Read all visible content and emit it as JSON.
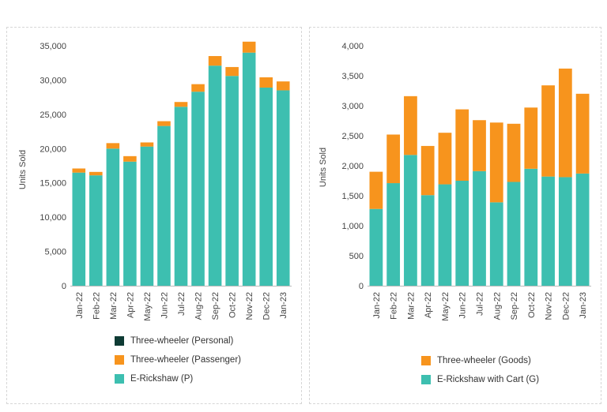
{
  "chart_data": [
    {
      "type": "bar",
      "stacked": true,
      "categories": [
        "Jan-22",
        "Feb-22",
        "Mar-22",
        "Apr-22",
        "May-22",
        "Jun-22",
        "Jul-22",
        "Aug-22",
        "Sep-22",
        "Oct-22",
        "Nov-22",
        "Dec-22",
        "Jan-23"
      ],
      "series": [
        {
          "name": "E-Rickshaw (P)",
          "color": "#3dbfb0",
          "values": [
            16500,
            16100,
            20000,
            18100,
            20300,
            23300,
            26100,
            28300,
            32100,
            30600,
            34000,
            28900,
            28500
          ]
        },
        {
          "name": "Three-wheeler (Passenger)",
          "color": "#f7941d",
          "values": [
            600,
            500,
            800,
            800,
            600,
            700,
            700,
            1100,
            1400,
            1300,
            1600,
            1500,
            1300
          ]
        },
        {
          "name": "Three-wheeler (Personal)",
          "color": "#0e3b34",
          "values": [
            0,
            0,
            0,
            0,
            0,
            0,
            0,
            0,
            0,
            0,
            0,
            0,
            0
          ]
        }
      ],
      "ylabel": "Units Sold",
      "ylim": [
        0,
        35000
      ],
      "yticks": [
        "0",
        "5,000",
        "10,000",
        "15,000",
        "20,000",
        "25,000",
        "30,000",
        "35,000"
      ],
      "legend_order": [
        2,
        1,
        0
      ],
      "legend_position": "bottom",
      "grid": false
    },
    {
      "type": "bar",
      "stacked": true,
      "categories": [
        "Jan-22",
        "Feb-22",
        "Mar-22",
        "Apr-22",
        "May-22",
        "Jun-22",
        "Jul-22",
        "Aug-22",
        "Sep-22",
        "Oct-22",
        "Nov-22",
        "Dec-22",
        "Jan-23"
      ],
      "series": [
        {
          "name": "E-Rickshaw with Cart (G)",
          "color": "#3dbfb0",
          "values": [
            1280,
            1710,
            2180,
            1510,
            1690,
            1750,
            1910,
            1390,
            1730,
            1950,
            1820,
            1810,
            1870
          ]
        },
        {
          "name": "Three-wheeler (Goods)",
          "color": "#f7941d",
          "values": [
            620,
            810,
            980,
            820,
            860,
            1190,
            850,
            1330,
            970,
            1020,
            1520,
            1810,
            1330
          ]
        }
      ],
      "ylabel": "Units Sold",
      "ylim": [
        0,
        4000
      ],
      "yticks": [
        "0",
        "500",
        "1,000",
        "1,500",
        "2,000",
        "2,500",
        "3,000",
        "3,500",
        "4,000"
      ],
      "legend_order": [
        1,
        0
      ],
      "legend_position": "bottom",
      "grid": false
    }
  ]
}
